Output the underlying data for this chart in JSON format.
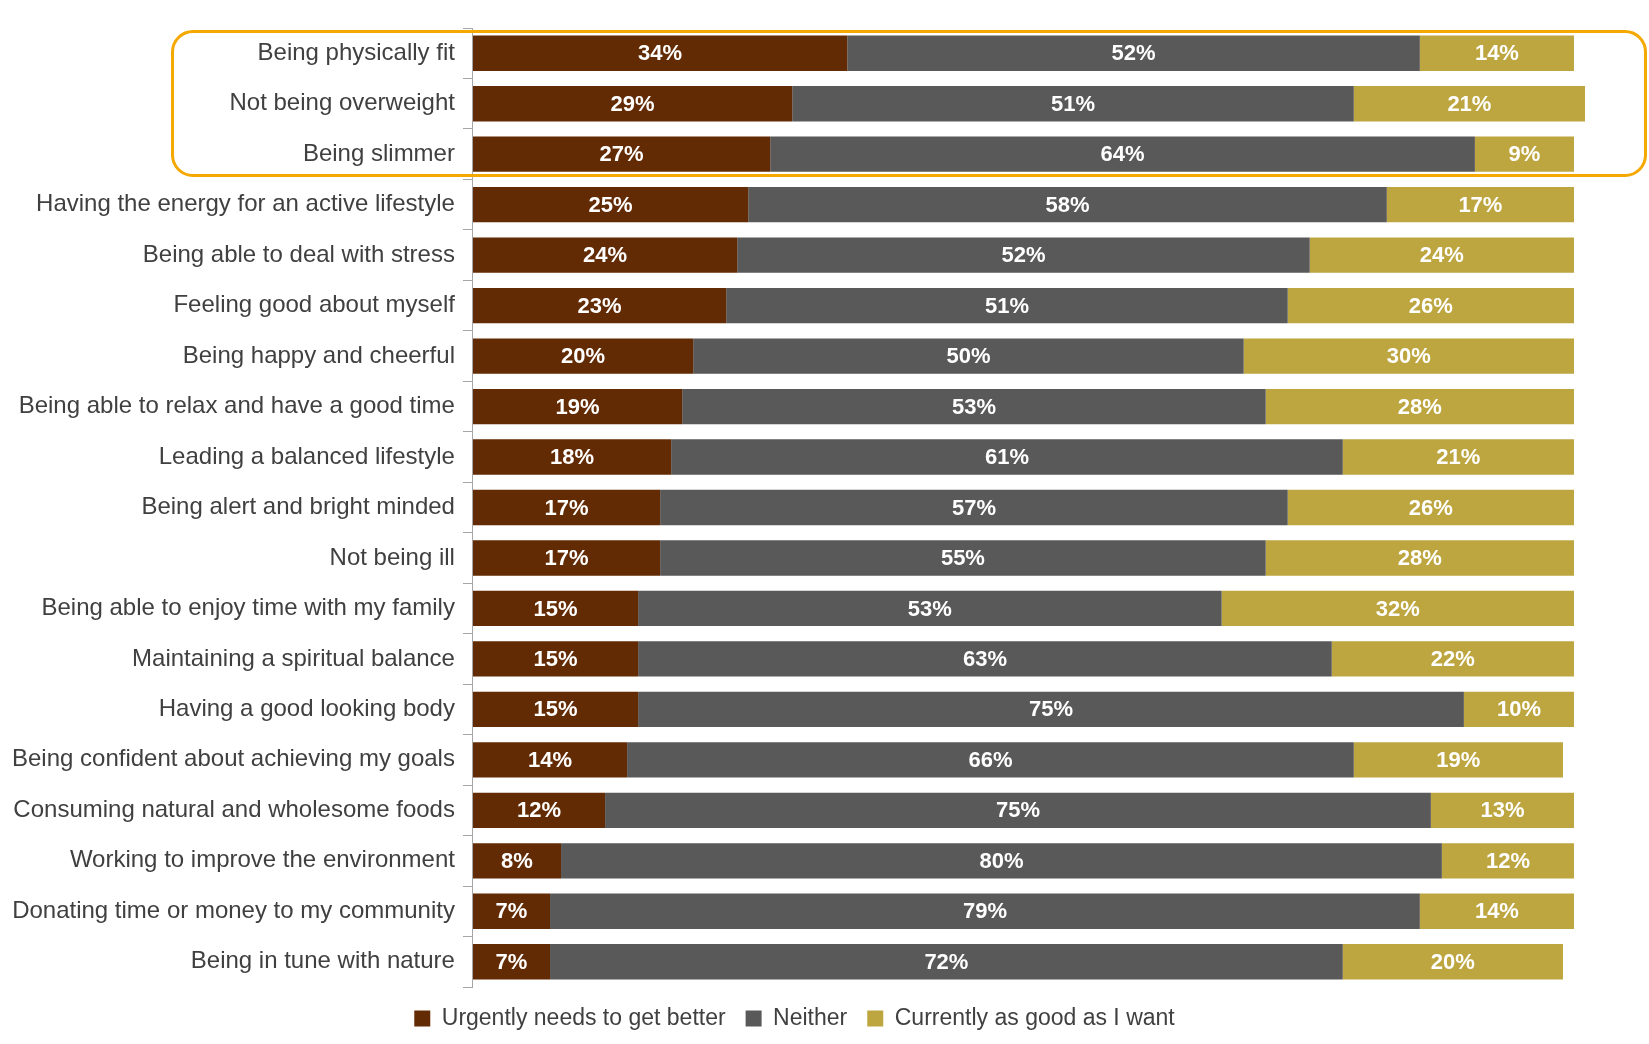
{
  "chart_data": {
    "type": "bar",
    "orientation": "horizontal",
    "stacked": true,
    "legend": "bottom",
    "tick_labels": "y",
    "xlim": [
      0,
      101
    ],
    "categories": [
      "Being physically fit",
      "Not being overweight",
      "Being slimmer",
      "Having the energy for an active lifestyle",
      "Being able to deal with stress",
      "Feeling good about myself",
      "Being happy and cheerful",
      "Being able to relax and have a good time",
      "Leading a balanced lifestyle",
      "Being alert and bright minded",
      "Not being ill",
      "Being able to enjoy time with my family",
      "Maintaining a spiritual balance",
      "Having a good looking body",
      "Being confident about achieving my goals",
      "Consuming natural and wholesome foods",
      "Working to improve the environment",
      "Donating time or money to my community",
      "Being in tune with nature"
    ],
    "series": [
      {
        "name": "Urgently needs to get better",
        "color": "#632b04",
        "values": [
          34,
          29,
          27,
          25,
          24,
          23,
          20,
          19,
          18,
          17,
          17,
          15,
          15,
          15,
          14,
          12,
          8,
          7,
          7
        ],
        "value_labels": [
          "34%",
          "29%",
          "27%",
          "25%",
          "24%",
          "23%",
          "20%",
          "19%",
          "18%",
          "17%",
          "17%",
          "15%",
          "15%",
          "15%",
          "14%",
          "12%",
          "8%",
          "7%",
          "7%"
        ]
      },
      {
        "name": "Neither",
        "color": "#595959",
        "values": [
          52,
          51,
          64,
          58,
          52,
          51,
          50,
          53,
          61,
          57,
          55,
          53,
          63,
          75,
          66,
          75,
          80,
          79,
          72
        ],
        "value_labels": [
          "52%",
          "51%",
          "64%",
          "58%",
          "52%",
          "51%",
          "50%",
          "53%",
          "61%",
          "57%",
          "55%",
          "53%",
          "63%",
          "75%",
          "66%",
          "75%",
          "80%",
          "79%",
          "72%"
        ]
      },
      {
        "name": "Currently as good as I want",
        "color": "#bda640",
        "values": [
          14,
          21,
          9,
          17,
          24,
          26,
          30,
          28,
          21,
          26,
          28,
          32,
          22,
          10,
          19,
          13,
          12,
          14,
          20
        ],
        "value_labels": [
          "14%",
          "21%",
          "9%",
          "17%",
          "24%",
          "26%",
          "30%",
          "28%",
          "21%",
          "26%",
          "28%",
          "32%",
          "22%",
          "10%",
          "19%",
          "13%",
          "12%",
          "14%",
          "20%"
        ]
      }
    ]
  }
}
